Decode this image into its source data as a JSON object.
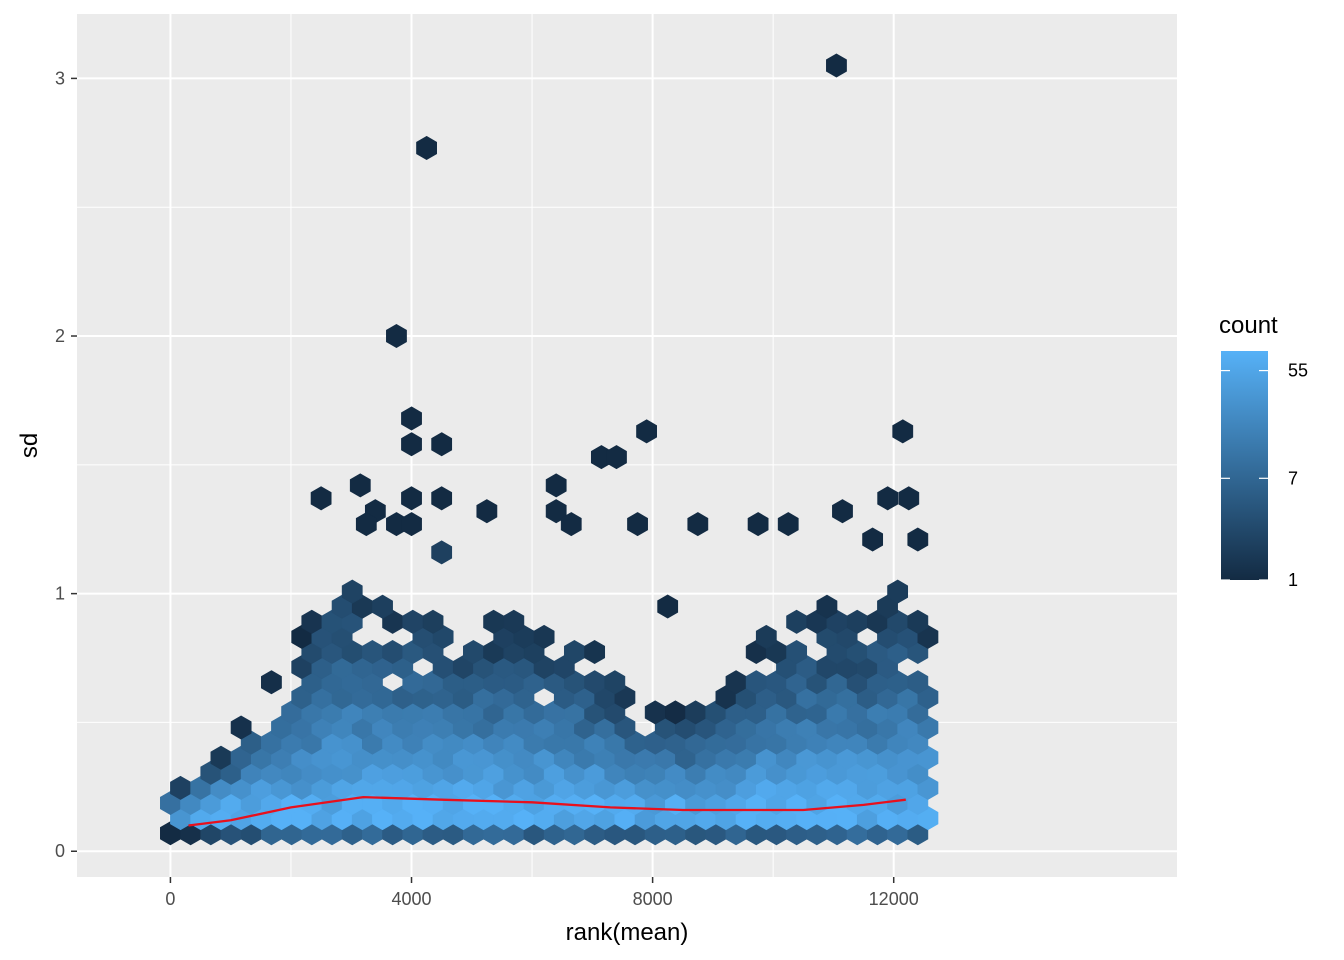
{
  "chart_data": {
    "type": "hexbin",
    "xlabel": "rank(mean)",
    "ylabel": "sd",
    "xlim": [
      -1550,
      16700
    ],
    "ylim": [
      -0.1,
      3.25
    ],
    "x_ticks": [
      0,
      4000,
      8000,
      12000
    ],
    "x_tick_labels": [
      "0",
      "4000",
      "8000",
      "12000"
    ],
    "x_minor_ticks": [
      2000,
      6000,
      10000
    ],
    "y_ticks": [
      0,
      1,
      2,
      3
    ],
    "y_tick_labels": [
      "0",
      "1",
      "2",
      "3"
    ],
    "y_minor_ticks": [
      0.5,
      1.5,
      2.5
    ],
    "grid": true,
    "legend": {
      "title": "count",
      "position": "right",
      "scale": "log",
      "breaks": [
        1,
        7,
        55
      ],
      "break_labels": [
        "1",
        "7",
        "55"
      ],
      "range": [
        1,
        80
      ]
    },
    "colors": {
      "panel_background": "#ebebeb",
      "grid_line": "#ffffff",
      "low": "#132b43",
      "high": "#56b1f7",
      "trend": "#e8101d"
    },
    "outliers": [
      {
        "x": 11050,
        "y": 3.05,
        "count": 1
      },
      {
        "x": 4250,
        "y": 2.73,
        "count": 1
      },
      {
        "x": 3750,
        "y": 2.0,
        "count": 1
      },
      {
        "x": 4000,
        "y": 1.68,
        "count": 1
      },
      {
        "x": 4000,
        "y": 1.58,
        "count": 1
      },
      {
        "x": 4500,
        "y": 1.58,
        "count": 1
      },
      {
        "x": 7900,
        "y": 1.63,
        "count": 1
      },
      {
        "x": 12150,
        "y": 1.63,
        "count": 1
      },
      {
        "x": 7150,
        "y": 1.53,
        "count": 1
      },
      {
        "x": 7400,
        "y": 1.53,
        "count": 1
      },
      {
        "x": 3150,
        "y": 1.42,
        "count": 1
      },
      {
        "x": 6400,
        "y": 1.42,
        "count": 1
      },
      {
        "x": 2500,
        "y": 1.37,
        "count": 1
      },
      {
        "x": 4000,
        "y": 1.37,
        "count": 1
      },
      {
        "x": 4500,
        "y": 1.37,
        "count": 1
      },
      {
        "x": 11900,
        "y": 1.37,
        "count": 1
      },
      {
        "x": 12250,
        "y": 1.37,
        "count": 1
      },
      {
        "x": 3400,
        "y": 1.32,
        "count": 1
      },
      {
        "x": 5250,
        "y": 1.32,
        "count": 1
      },
      {
        "x": 6400,
        "y": 1.32,
        "count": 1
      },
      {
        "x": 11150,
        "y": 1.32,
        "count": 1
      },
      {
        "x": 3250,
        "y": 1.27,
        "count": 1
      },
      {
        "x": 3750,
        "y": 1.27,
        "count": 1
      },
      {
        "x": 4000,
        "y": 1.27,
        "count": 1
      },
      {
        "x": 6650,
        "y": 1.27,
        "count": 1
      },
      {
        "x": 7750,
        "y": 1.27,
        "count": 1
      },
      {
        "x": 8750,
        "y": 1.27,
        "count": 1
      },
      {
        "x": 9750,
        "y": 1.27,
        "count": 1
      },
      {
        "x": 10250,
        "y": 1.27,
        "count": 1
      },
      {
        "x": 12400,
        "y": 1.21,
        "count": 1
      },
      {
        "x": 11650,
        "y": 1.21,
        "count": 1
      },
      {
        "x": 4500,
        "y": 1.16,
        "count": 2
      },
      {
        "x": 8250,
        "y": 0.95,
        "count": 1
      }
    ],
    "density": {
      "x_range": [
        0,
        12600
      ],
      "lower_sd": [
        [
          0,
          0.07
        ],
        [
          2000,
          0.06
        ],
        [
          6000,
          0.06
        ],
        [
          10000,
          0.06
        ],
        [
          12600,
          0.06
        ]
      ],
      "upper_sd": [
        [
          0,
          0.22
        ],
        [
          300,
          0.28
        ],
        [
          1000,
          0.45
        ],
        [
          2000,
          0.78
        ],
        [
          2800,
          1.1
        ],
        [
          3600,
          1.0
        ],
        [
          5000,
          0.92
        ],
        [
          6500,
          0.9
        ],
        [
          8000,
          0.55
        ],
        [
          9000,
          0.6
        ],
        [
          9800,
          0.85
        ],
        [
          10600,
          0.95
        ],
        [
          11500,
          0.95
        ],
        [
          12000,
          1.05
        ],
        [
          12600,
          0.9
        ]
      ],
      "peak_count": 80
    },
    "series": [
      {
        "type": "trend",
        "x": [
          300,
          1000,
          2000,
          3200,
          4500,
          6000,
          7300,
          8500,
          9500,
          10500,
          11500,
          12200
        ],
        "y": [
          0.1,
          0.12,
          0.17,
          0.21,
          0.2,
          0.19,
          0.17,
          0.16,
          0.16,
          0.16,
          0.18,
          0.2
        ]
      }
    ]
  }
}
